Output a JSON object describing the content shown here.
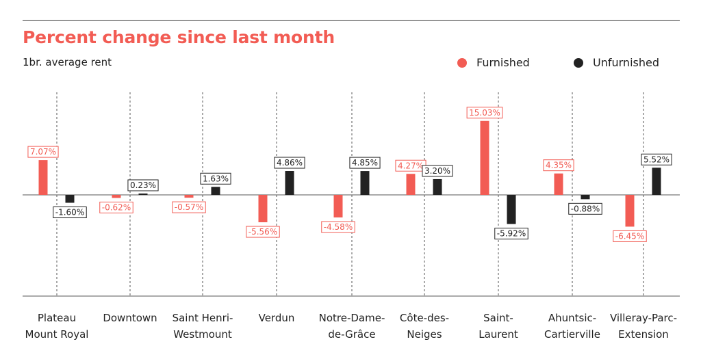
{
  "title": "Percent change since last month",
  "subtitle": "1br. average rent",
  "colors": {
    "furnished": "#f25c54",
    "unfurnished": "#222222",
    "axis": "#555555"
  },
  "legend": [
    {
      "label": "Furnished",
      "color": "#f25c54"
    },
    {
      "label": "Unfurnished",
      "color": "#222222"
    }
  ],
  "chart_data": {
    "type": "bar",
    "title": "Percent change since last month",
    "subtitle": "1br. average rent",
    "legend_position": "top-right",
    "categories": [
      "Plateau\nMount Royal",
      "Downtown",
      "Saint Henri-\nWestmount",
      "Verdun",
      "Notre-Dame-\nde-Grâce",
      "Côte-des-\nNeiges",
      "Saint-\nLaurent",
      "Ahuntsic-\nCartierville",
      "Villeray-Parc-\nExtension"
    ],
    "series": [
      {
        "name": "Furnished",
        "values": [
          7.07,
          -0.62,
          -0.57,
          -5.56,
          -4.58,
          4.27,
          15.03,
          4.35,
          -6.45
        ],
        "labels": [
          "7.07%",
          "-0.62%",
          "-0.57%",
          "-5.56%",
          "-4.58%",
          "4.27%",
          "15.03%",
          "4.35%",
          "-6.45%"
        ]
      },
      {
        "name": "Unfurnished",
        "values": [
          -1.6,
          0.23,
          1.63,
          4.86,
          4.85,
          3.2,
          -5.92,
          -0.88,
          5.52
        ],
        "labels": [
          "-1.60%",
          "0.23%",
          "1.63%",
          "4.86%",
          "4.85%",
          "3.20%",
          "-5.92%",
          "-0.88%",
          "5.52%"
        ]
      }
    ],
    "grid": "vertical dashed separators",
    "baseline": 0
  }
}
